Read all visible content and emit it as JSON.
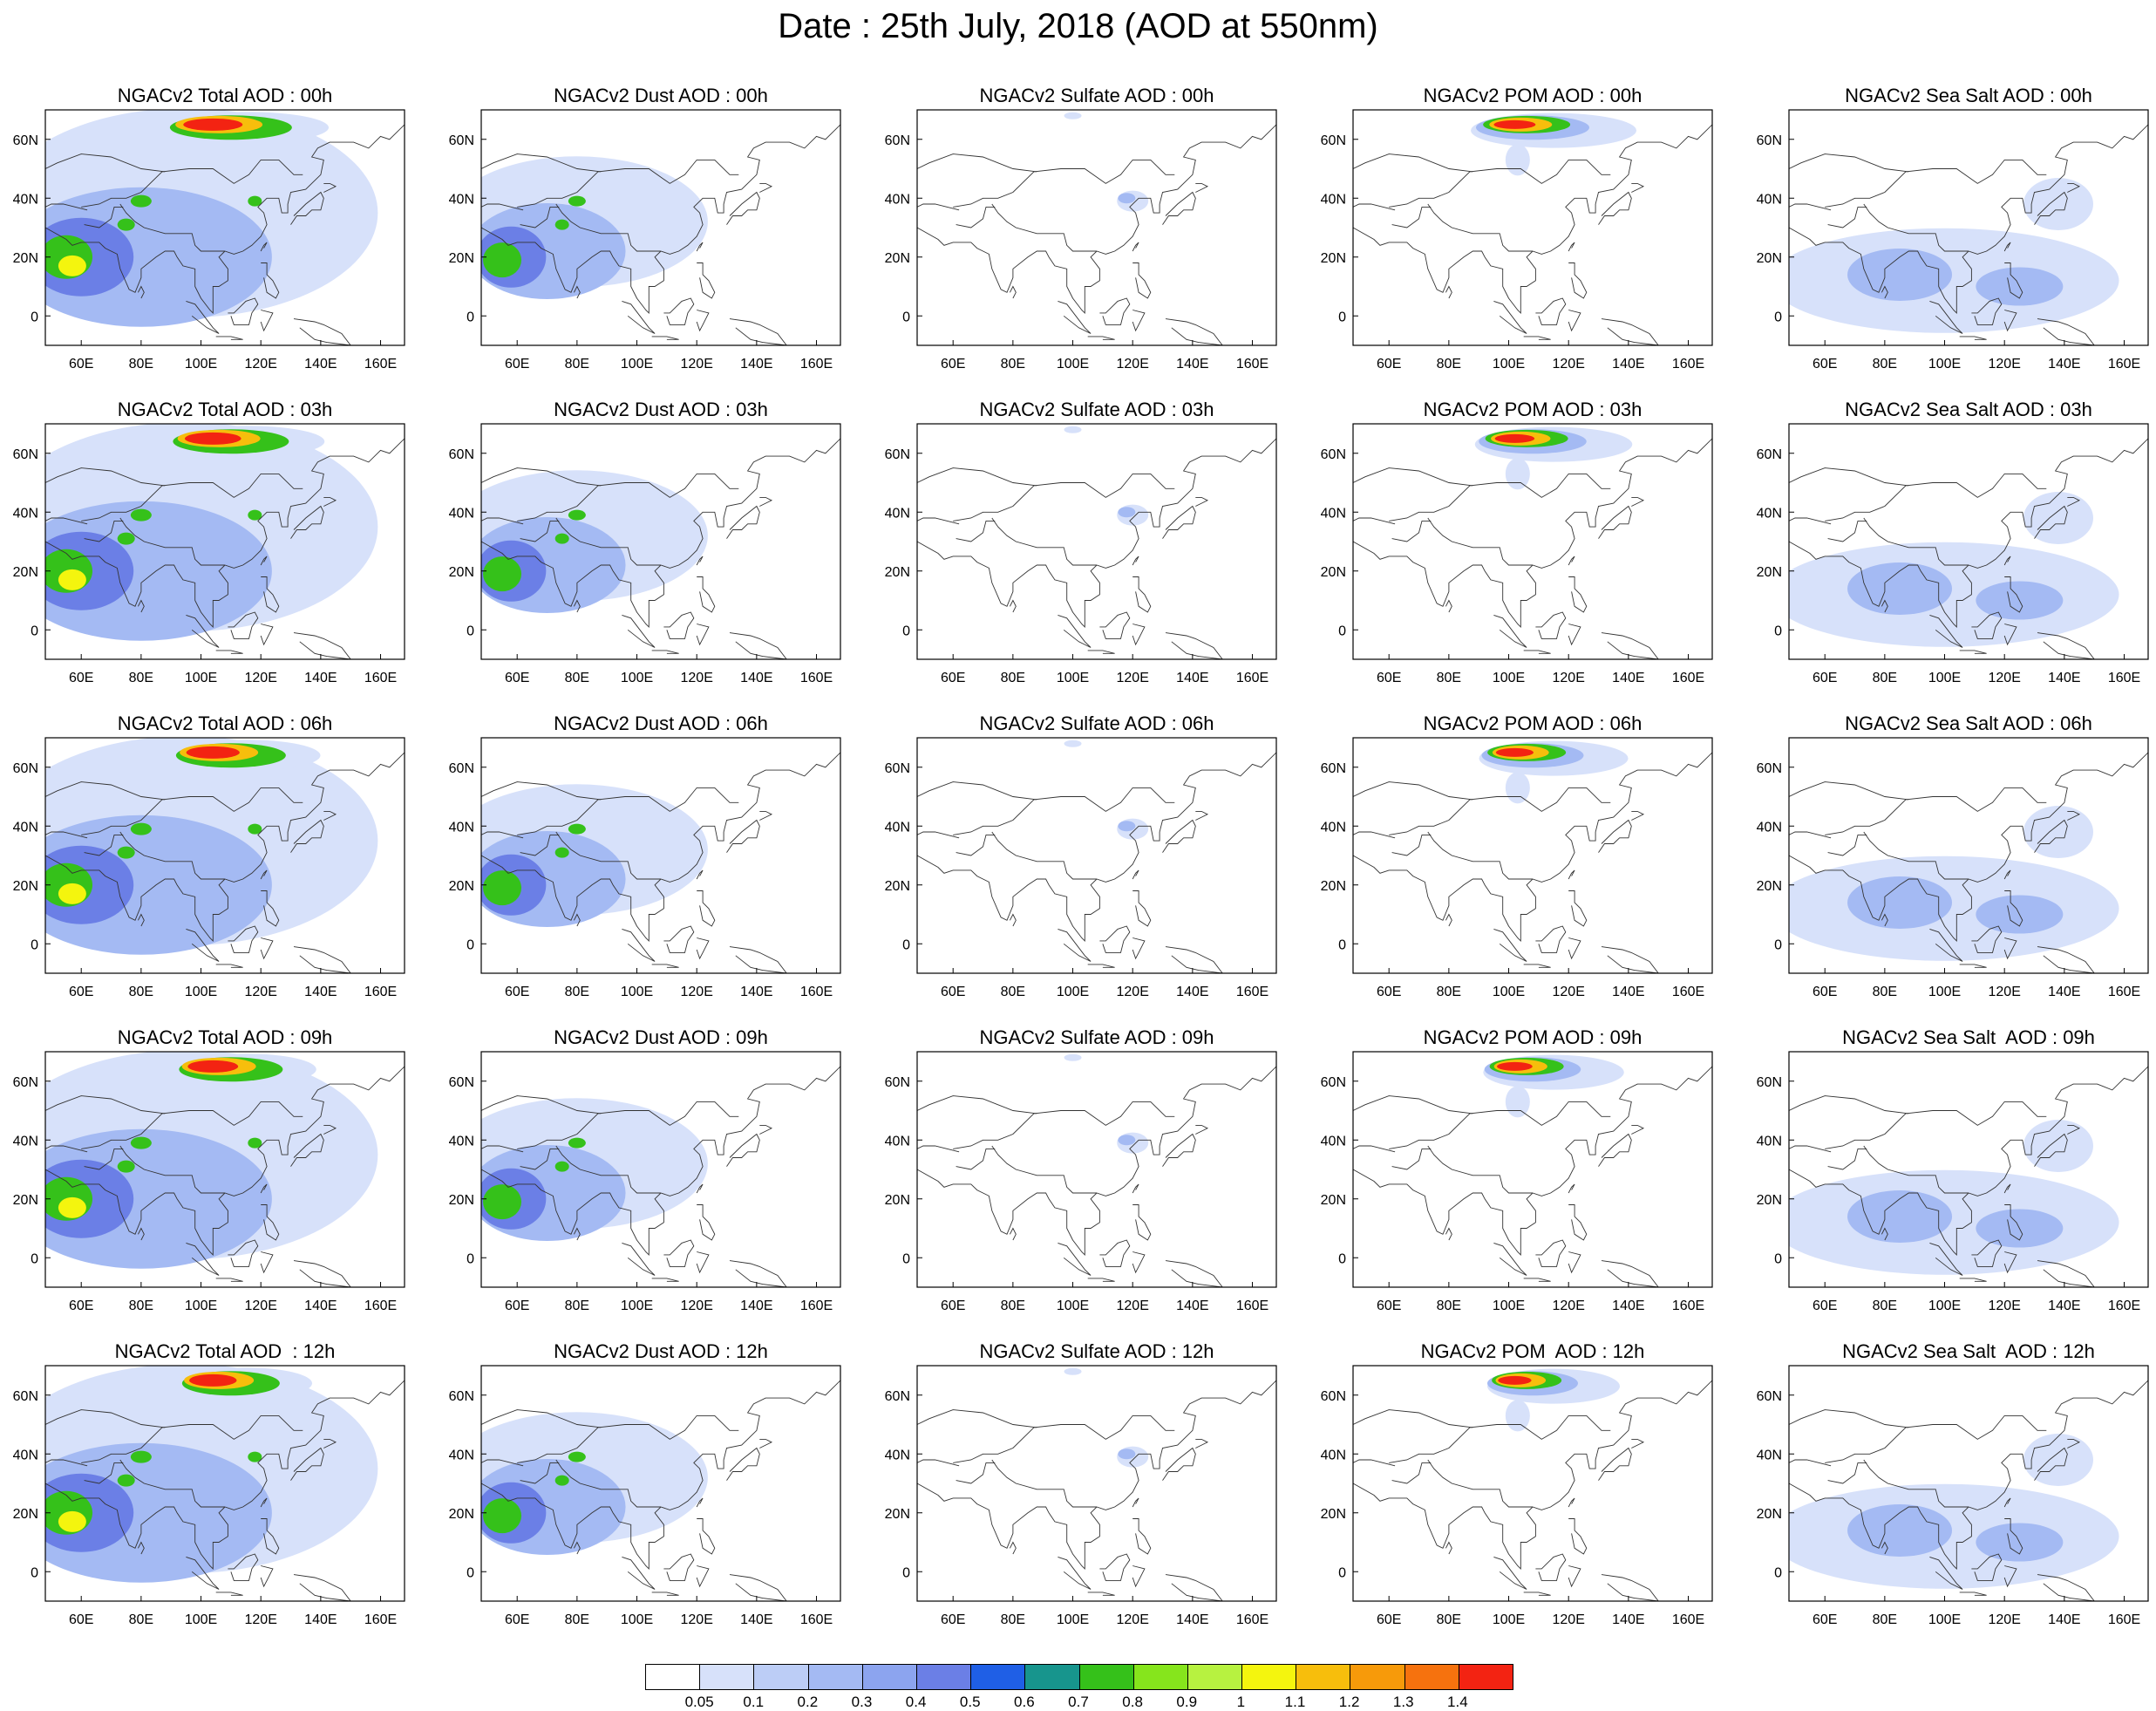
{
  "title": "Date : 25th July, 2018 (AOD at 550nm)",
  "x_ticks": [
    "60E",
    "80E",
    "100E",
    "120E",
    "140E",
    "160E"
  ],
  "y_ticks": [
    "60N",
    "40N",
    "20N",
    "0"
  ],
  "rows": [
    {
      "titles": [
        "NGACv2 Total AOD : 00h",
        "NGACv2 Dust AOD : 00h",
        "NGACv2 Sulfate AOD : 00h",
        "NGACv2 POM AOD : 00h",
        "NGACv2 Sea Salt AOD : 00h"
      ]
    },
    {
      "titles": [
        "NGACv2 Total AOD : 03h",
        "NGACv2 Dust AOD : 03h",
        "NGACv2 Sulfate AOD : 03h",
        "NGACv2 POM AOD : 03h",
        "NGACv2 Sea Salt AOD : 03h"
      ]
    },
    {
      "titles": [
        "NGACv2 Total AOD : 06h",
        "NGACv2 Dust AOD : 06h",
        "NGACv2 Sulfate AOD : 06h",
        "NGACv2 POM AOD : 06h",
        "NGACv2 Sea Salt AOD : 06h"
      ]
    },
    {
      "titles": [
        "NGACv2 Total AOD : 09h",
        "NGACv2 Dust AOD : 09h",
        "NGACv2 Sulfate AOD : 09h",
        "NGACv2 POM AOD : 09h",
        "NGACv2 Sea Salt  AOD : 09h"
      ]
    },
    {
      "titles": [
        "NGACv2 Total AOD  : 12h",
        "NGACv2 Dust AOD : 12h",
        "NGACv2 Sulfate AOD : 12h",
        "NGACv2 POM  AOD : 12h",
        "NGACv2 Sea Salt  AOD : 12h"
      ]
    }
  ],
  "colorbar": {
    "labels": [
      "0.05",
      "0.1",
      "0.2",
      "0.3",
      "0.4",
      "0.5",
      "0.6",
      "0.7",
      "0.8",
      "0.9",
      "1",
      "1.1",
      "1.2",
      "1.3",
      "1.4"
    ],
    "colors": [
      "#ffffff",
      "#d7e1fa",
      "#bccdf6",
      "#a4baf3",
      "#8ca4ef",
      "#6b7fe6",
      "#1f5fe6",
      "#17958d",
      "#35c11a",
      "#86e51c",
      "#b7f240",
      "#f4f50e",
      "#f7be0c",
      "#f79a0a",
      "#f6720e",
      "#f32312"
    ]
  },
  "plume_colors": {
    "low": "#d7e1fa",
    "mid": "#a4baf3",
    "high": "#6b7fe6",
    "green": "#35c11a",
    "yellow": "#f4f50e",
    "orange": "#f7be0c",
    "red": "#f32312"
  }
}
